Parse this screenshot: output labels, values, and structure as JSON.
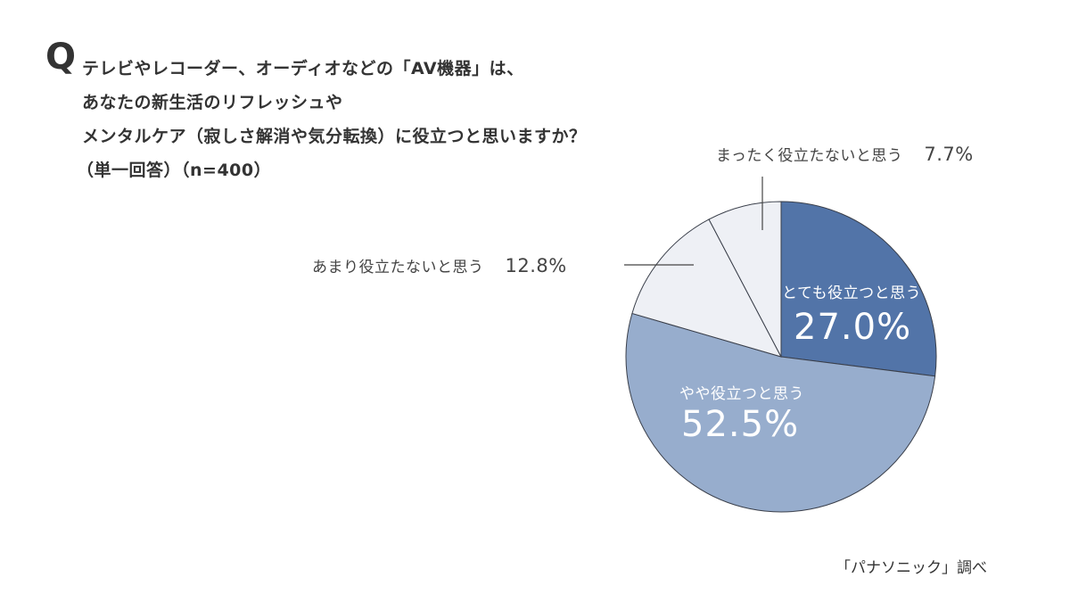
{
  "question": {
    "mark": "Q",
    "lines": [
      "テレビやレコーダー、オーディオなどの「AV機器」は、",
      "あなたの新生活のリフレッシュや",
      "メンタルケア（寂しさ解消や気分転換）に役立つと思いますか？",
      "（単一回答）（n=400）"
    ]
  },
  "source": "「パナソニック」調べ",
  "colors": {
    "very_useful": "#5274A8",
    "somewhat_useful": "#97ADCD",
    "not_very": "#EEF0F5",
    "not_at_all": "#EEF0F5",
    "outline": "#3a3f4a"
  },
  "labels": {
    "very_useful": {
      "text": "とても役立つと思う",
      "pct": "27.0%"
    },
    "somewhat_useful": {
      "text": "やや役立つと思う",
      "pct": "52.5%"
    },
    "not_very": {
      "text": "あまり役立たないと思う",
      "pct": "12.8%"
    },
    "not_at_all": {
      "text": "まったく役立たないと思う",
      "pct": "7.7%"
    }
  },
  "chart_data": {
    "type": "pie",
    "title": "テレビやレコーダー、オーディオなどの「AV機器」は、あなたの新生活のリフレッシュやメンタルケア（寂しさ解消や気分転換）に役立つと思いますか？（単一回答）（n=400）",
    "n": 400,
    "start_angle": "12 o'clock, clockwise",
    "categories": [
      "とても役立つと思う",
      "やや役立つと思う",
      "あまり役立たないと思う",
      "まったく役立たないと思う"
    ],
    "values": [
      27.0,
      52.5,
      12.8,
      7.7
    ],
    "unit": "%",
    "colors": [
      "#5274A8",
      "#97ADCD",
      "#EEF0F5",
      "#EEF0F5"
    ],
    "source": "「パナソニック」調べ"
  }
}
